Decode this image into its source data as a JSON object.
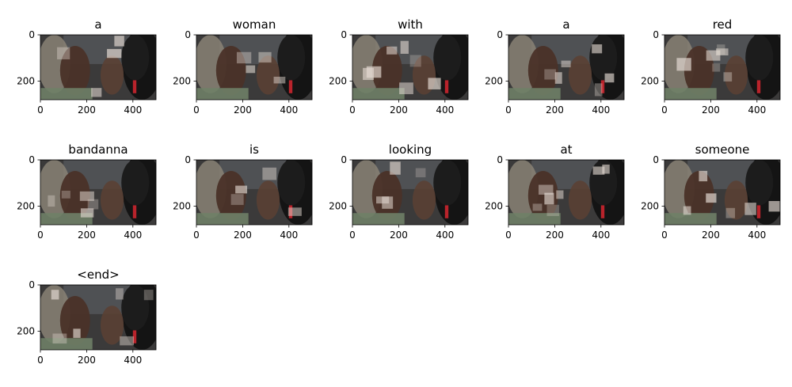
{
  "figure": {
    "kind": "attention-grid",
    "colors": {
      "background": "#ffffff",
      "image_base": "#3b3a3a",
      "attention_light": "#e6dcd4",
      "accent_red": "#b9232b",
      "green_area": "#6f7f67"
    }
  },
  "chart_data": {
    "type": "heatmap",
    "description": "Image caption attention visualization; one image panel per generated word",
    "words": [
      "a",
      "woman",
      "with",
      "a",
      "red",
      "bandanna",
      "is",
      "looking",
      "at",
      "someone",
      "<end>"
    ],
    "panels": [
      {
        "title": "a"
      },
      {
        "title": "woman"
      },
      {
        "title": "with"
      },
      {
        "title": "a"
      },
      {
        "title": "red"
      },
      {
        "title": "bandanna"
      },
      {
        "title": "is"
      },
      {
        "title": "looking"
      },
      {
        "title": "at"
      },
      {
        "title": "someone"
      },
      {
        "title": "<end>"
      }
    ],
    "x_ticks": [
      0,
      200,
      400
    ],
    "y_ticks": [
      0,
      200
    ],
    "xlim": [
      0,
      500
    ],
    "ylim": [
      280,
      0
    ],
    "grid": false
  }
}
